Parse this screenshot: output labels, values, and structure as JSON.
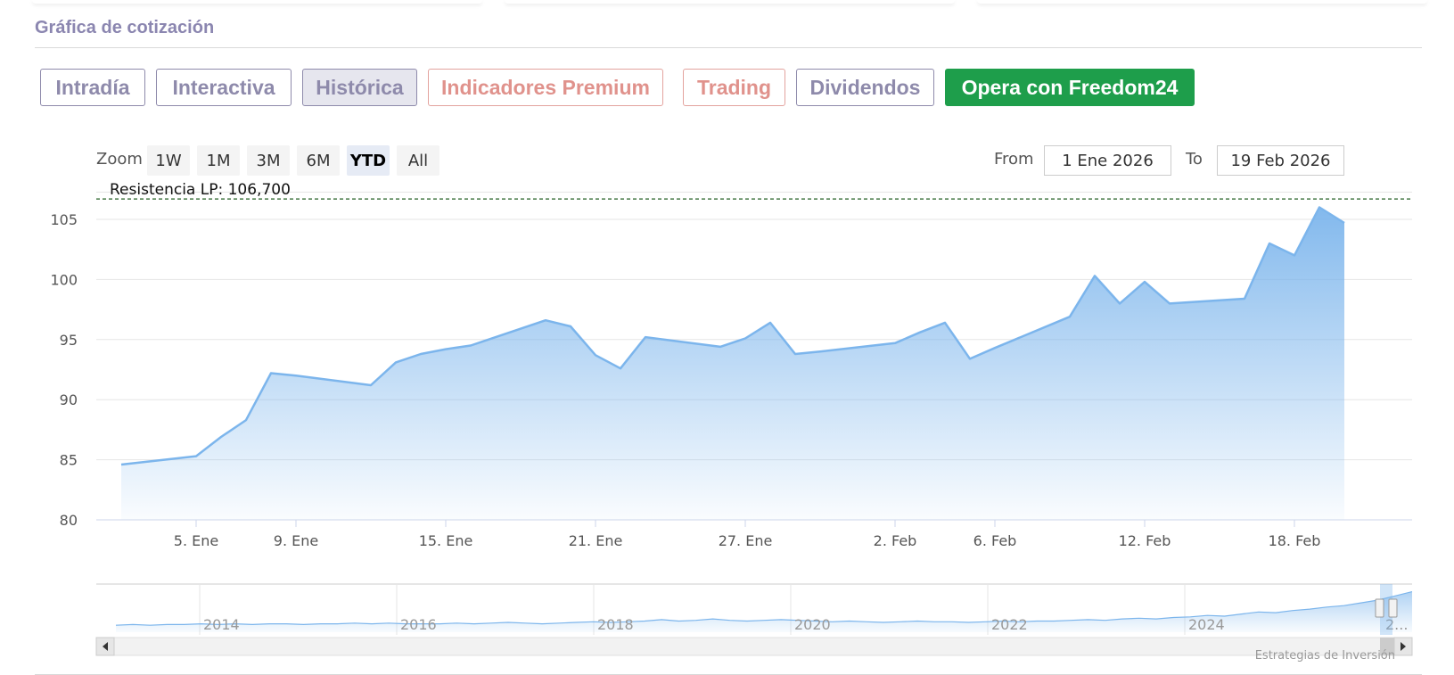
{
  "section_title": "Gráfica de cotización",
  "tabs": [
    {
      "label": "Intradía",
      "style": "normal"
    },
    {
      "label": "Interactiva",
      "style": "normal"
    },
    {
      "label": "Histórica",
      "style": "active"
    },
    {
      "label": "Indicadores Premium",
      "style": "premium"
    },
    {
      "label": "Trading",
      "style": "premium"
    },
    {
      "label": "Dividendos",
      "style": "normal"
    },
    {
      "label": "Opera con Freedom24",
      "style": "cta"
    }
  ],
  "range_selector": {
    "zoom_label": "Zoom",
    "buttons": [
      "1W",
      "1M",
      "3M",
      "6M",
      "YTD",
      "All"
    ],
    "selected": "YTD",
    "from_label": "From",
    "from_value": "1 Ene 2026",
    "to_label": "To",
    "to_value": "19 Feb 2026"
  },
  "credit": "Estrategias de Inversión",
  "colors": {
    "line": "#7cb5ec",
    "area_top": "#7cb5ec",
    "resistance": "#1e5c1e",
    "cta": "#1e9e4b",
    "title": "#8b86b0",
    "premium": "#e0928c"
  },
  "chart_data": {
    "type": "area",
    "x": [
      "2026-01-02",
      "2026-01-05",
      "2026-01-06",
      "2026-01-07",
      "2026-01-08",
      "2026-01-09",
      "2026-01-12",
      "2026-01-13",
      "2026-01-14",
      "2026-01-15",
      "2026-01-16",
      "2026-01-19",
      "2026-01-20",
      "2026-01-21",
      "2026-01-22",
      "2026-01-23",
      "2026-01-26",
      "2026-01-27",
      "2026-01-28",
      "2026-01-29",
      "2026-01-30",
      "2026-02-02",
      "2026-02-03",
      "2026-02-04",
      "2026-02-05",
      "2026-02-06",
      "2026-02-09",
      "2026-02-10",
      "2026-02-11",
      "2026-02-12",
      "2026-02-13",
      "2026-02-16",
      "2026-02-17",
      "2026-02-18",
      "2026-02-19",
      "2026-02-20"
    ],
    "values": [
      84.6,
      85.3,
      86.9,
      88.3,
      92.2,
      92.0,
      91.2,
      93.1,
      93.8,
      94.2,
      94.5,
      96.6,
      96.1,
      93.7,
      92.6,
      95.2,
      94.4,
      95.1,
      96.4,
      93.8,
      94.0,
      94.7,
      95.6,
      96.4,
      93.4,
      94.3,
      96.9,
      100.3,
      98.0,
      99.8,
      98.0,
      98.4,
      103.0,
      102.0,
      106.0,
      104.7
    ],
    "x_ticks": [
      "5. Ene",
      "9. Ene",
      "15. Ene",
      "21. Ene",
      "27. Ene",
      "2. Feb",
      "6. Feb",
      "12. Feb",
      "18. Feb"
    ],
    "y_ticks": [
      80,
      85,
      90,
      95,
      100,
      105
    ],
    "ylim": [
      80,
      107.3
    ],
    "grid": true,
    "plot_lines": [
      {
        "label": "Resistencia LP: 106,700",
        "value": 106.7,
        "style": "dashed"
      }
    ],
    "navigator": {
      "year_labels": [
        "2014",
        "2016",
        "2018",
        "2020",
        "2022",
        "2024",
        "2..."
      ],
      "series": [
        10,
        11,
        10,
        11,
        11,
        12,
        11,
        12,
        11,
        12,
        12,
        11,
        12,
        12,
        13,
        12,
        13,
        12,
        12,
        12,
        13,
        12,
        13,
        14,
        13,
        12,
        13,
        14,
        15,
        14,
        15,
        16,
        18,
        16,
        17,
        19,
        17,
        16,
        17,
        18,
        17,
        16,
        15,
        16,
        15,
        14,
        15,
        16,
        15,
        15,
        14,
        15,
        16,
        15,
        16,
        16,
        17,
        18,
        17,
        19,
        20,
        19,
        21,
        22,
        24,
        23,
        26,
        29,
        28,
        31,
        33,
        36,
        38,
        42,
        46,
        52,
        58
      ]
    }
  }
}
